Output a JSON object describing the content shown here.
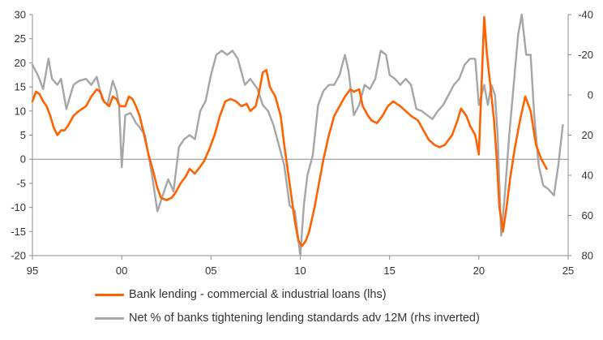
{
  "chart_data": {
    "type": "line",
    "x_axis": {
      "ticks": [
        "95",
        "00",
        "05",
        "10",
        "15",
        "20",
        "25"
      ],
      "tick_years": [
        1995,
        2000,
        2005,
        2010,
        2015,
        2020,
        2025
      ],
      "range": [
        1995,
        2025
      ]
    },
    "y_left": {
      "ticks": [
        30,
        25,
        20,
        15,
        10,
        5,
        0,
        -5,
        -10,
        -15,
        -20
      ],
      "range": [
        -20,
        30
      ]
    },
    "y_right": {
      "ticks": [
        -40,
        -20,
        0,
        20,
        40,
        60,
        80
      ],
      "range": [
        -40,
        80
      ],
      "inverted": true
    },
    "zero_line": true,
    "legend_position": "bottom",
    "series": [
      {
        "name": "Bank lending - commercial & industrial loans (lhs)",
        "axis": "left",
        "color": "#FF6200",
        "points": [
          [
            1995.0,
            12
          ],
          [
            1995.2,
            14
          ],
          [
            1995.4,
            13.5
          ],
          [
            1995.6,
            12
          ],
          [
            1995.8,
            11
          ],
          [
            1996.0,
            9
          ],
          [
            1996.2,
            6.5
          ],
          [
            1996.4,
            5
          ],
          [
            1996.6,
            6
          ],
          [
            1996.8,
            6
          ],
          [
            1997.0,
            7
          ],
          [
            1997.3,
            9
          ],
          [
            1997.6,
            10
          ],
          [
            1998.0,
            11
          ],
          [
            1998.3,
            13
          ],
          [
            1998.6,
            14.5
          ],
          [
            1998.8,
            14
          ],
          [
            1999.0,
            12
          ],
          [
            1999.3,
            11
          ],
          [
            1999.5,
            13
          ],
          [
            1999.7,
            12.5
          ],
          [
            1999.9,
            11
          ],
          [
            2000.2,
            11
          ],
          [
            2000.4,
            13
          ],
          [
            2000.6,
            12.5
          ],
          [
            2000.8,
            11
          ],
          [
            2001.0,
            9
          ],
          [
            2001.2,
            6
          ],
          [
            2001.5,
            1
          ],
          [
            2001.8,
            -3
          ],
          [
            2002.0,
            -6
          ],
          [
            2002.2,
            -8
          ],
          [
            2002.5,
            -8.5
          ],
          [
            2002.8,
            -8
          ],
          [
            2003.0,
            -7
          ],
          [
            2003.3,
            -5
          ],
          [
            2003.6,
            -3.5
          ],
          [
            2003.8,
            -2
          ],
          [
            2004.1,
            -3
          ],
          [
            2004.3,
            -2
          ],
          [
            2004.6,
            -0.5
          ],
          [
            2004.9,
            2
          ],
          [
            2005.2,
            5
          ],
          [
            2005.5,
            9
          ],
          [
            2005.8,
            12
          ],
          [
            2006.1,
            12.5
          ],
          [
            2006.4,
            12
          ],
          [
            2006.7,
            11
          ],
          [
            2007.0,
            11.5
          ],
          [
            2007.2,
            10
          ],
          [
            2007.5,
            11
          ],
          [
            2007.7,
            14
          ],
          [
            2007.9,
            18
          ],
          [
            2008.1,
            18.5
          ],
          [
            2008.3,
            15
          ],
          [
            2008.6,
            13
          ],
          [
            2008.9,
            9
          ],
          [
            2009.1,
            3
          ],
          [
            2009.4,
            -5
          ],
          [
            2009.7,
            -13
          ],
          [
            2009.9,
            -17
          ],
          [
            2010.1,
            -18
          ],
          [
            2010.3,
            -17
          ],
          [
            2010.5,
            -15
          ],
          [
            2010.8,
            -10
          ],
          [
            2011.0,
            -6
          ],
          [
            2011.3,
            0
          ],
          [
            2011.6,
            5
          ],
          [
            2011.9,
            9
          ],
          [
            2012.2,
            11
          ],
          [
            2012.5,
            13
          ],
          [
            2012.8,
            14.5
          ],
          [
            2013.0,
            14
          ],
          [
            2013.3,
            14.5
          ],
          [
            2013.5,
            11
          ],
          [
            2013.8,
            9
          ],
          [
            2014.0,
            8
          ],
          [
            2014.3,
            7.5
          ],
          [
            2014.6,
            9
          ],
          [
            2014.9,
            11
          ],
          [
            2015.2,
            12
          ],
          [
            2015.6,
            11
          ],
          [
            2015.9,
            10
          ],
          [
            2016.2,
            9
          ],
          [
            2016.6,
            8
          ],
          [
            2016.9,
            6
          ],
          [
            2017.2,
            4
          ],
          [
            2017.5,
            3
          ],
          [
            2017.8,
            2.5
          ],
          [
            2018.1,
            3
          ],
          [
            2018.5,
            5
          ],
          [
            2018.8,
            8
          ],
          [
            2019.0,
            10.5
          ],
          [
            2019.3,
            9
          ],
          [
            2019.5,
            7
          ],
          [
            2019.8,
            5
          ],
          [
            2020.0,
            1
          ],
          [
            2020.15,
            15
          ],
          [
            2020.3,
            29.5
          ],
          [
            2020.45,
            22
          ],
          [
            2020.65,
            15
          ],
          [
            2020.85,
            8
          ],
          [
            2021.0,
            0
          ],
          [
            2021.15,
            -10
          ],
          [
            2021.35,
            -15
          ],
          [
            2021.55,
            -10
          ],
          [
            2021.75,
            -4
          ],
          [
            2022.0,
            2
          ],
          [
            2022.3,
            8
          ],
          [
            2022.6,
            13
          ],
          [
            2022.9,
            10
          ],
          [
            2023.2,
            3
          ],
          [
            2023.5,
            0
          ],
          [
            2023.8,
            -2
          ]
        ]
      },
      {
        "name": "Net % of banks tightening lending standards adv 12M (rhs inverted)",
        "axis": "right",
        "color": "#A6A6A6",
        "points": [
          [
            1995.0,
            -15
          ],
          [
            1995.3,
            -10
          ],
          [
            1995.6,
            -3
          ],
          [
            1995.9,
            -18
          ],
          [
            1996.1,
            -8
          ],
          [
            1996.4,
            -5
          ],
          [
            1996.6,
            -8
          ],
          [
            1996.9,
            7
          ],
          [
            1997.3,
            -5
          ],
          [
            1997.6,
            -7
          ],
          [
            1998.0,
            -8
          ],
          [
            1998.3,
            -5
          ],
          [
            1998.6,
            -9
          ],
          [
            1998.9,
            2
          ],
          [
            1999.2,
            5
          ],
          [
            1999.5,
            -7
          ],
          [
            1999.7,
            -2
          ],
          [
            1999.85,
            5
          ],
          [
            2000.0,
            36
          ],
          [
            2000.2,
            10
          ],
          [
            2000.5,
            9
          ],
          [
            2000.8,
            14
          ],
          [
            2001.0,
            16
          ],
          [
            2001.3,
            20
          ],
          [
            2001.7,
            40
          ],
          [
            2002.0,
            58
          ],
          [
            2002.3,
            50
          ],
          [
            2002.6,
            42
          ],
          [
            2002.9,
            48
          ],
          [
            2003.2,
            26
          ],
          [
            2003.5,
            22
          ],
          [
            2003.8,
            20
          ],
          [
            2004.1,
            22
          ],
          [
            2004.4,
            8
          ],
          [
            2004.7,
            3
          ],
          [
            2005.0,
            -10
          ],
          [
            2005.3,
            -20
          ],
          [
            2005.6,
            -22
          ],
          [
            2005.9,
            -20
          ],
          [
            2006.2,
            -22
          ],
          [
            2006.5,
            -18
          ],
          [
            2006.9,
            -5
          ],
          [
            2007.2,
            -8
          ],
          [
            2007.6,
            -3
          ],
          [
            2007.9,
            5
          ],
          [
            2008.2,
            8
          ],
          [
            2008.5,
            15
          ],
          [
            2008.8,
            25
          ],
          [
            2009.1,
            35
          ],
          [
            2009.4,
            55
          ],
          [
            2009.7,
            58
          ],
          [
            2010.0,
            80
          ],
          [
            2010.2,
            55
          ],
          [
            2010.4,
            40
          ],
          [
            2010.7,
            30
          ],
          [
            2011.0,
            5
          ],
          [
            2011.3,
            -2
          ],
          [
            2011.6,
            -5
          ],
          [
            2011.9,
            -5
          ],
          [
            2012.2,
            -10
          ],
          [
            2012.5,
            -20
          ],
          [
            2012.7,
            -12
          ],
          [
            2013.0,
            10
          ],
          [
            2013.3,
            5
          ],
          [
            2013.6,
            -5
          ],
          [
            2013.9,
            -3
          ],
          [
            2014.2,
            -8
          ],
          [
            2014.5,
            -22
          ],
          [
            2014.8,
            -20
          ],
          [
            2015.0,
            -10
          ],
          [
            2015.3,
            -8
          ],
          [
            2015.6,
            -5
          ],
          [
            2015.9,
            -8
          ],
          [
            2016.2,
            -5
          ],
          [
            2016.5,
            7
          ],
          [
            2016.8,
            8
          ],
          [
            2017.1,
            10
          ],
          [
            2017.4,
            12
          ],
          [
            2017.7,
            8
          ],
          [
            2018.0,
            5
          ],
          [
            2018.3,
            0
          ],
          [
            2018.6,
            -5
          ],
          [
            2018.9,
            -8
          ],
          [
            2019.2,
            -15
          ],
          [
            2019.5,
            -18
          ],
          [
            2019.8,
            -18
          ],
          [
            2020.0,
            5
          ],
          [
            2020.3,
            -5
          ],
          [
            2020.5,
            5
          ],
          [
            2020.7,
            -5
          ],
          [
            2020.9,
            0
          ],
          [
            2021.05,
            20
          ],
          [
            2021.25,
            70
          ],
          [
            2021.45,
            50
          ],
          [
            2021.7,
            20
          ],
          [
            2021.95,
            -5
          ],
          [
            2022.2,
            -30
          ],
          [
            2022.4,
            -40
          ],
          [
            2022.65,
            -20
          ],
          [
            2022.9,
            -20
          ],
          [
            2023.1,
            10
          ],
          [
            2023.35,
            35
          ],
          [
            2023.6,
            45
          ],
          [
            2023.9,
            47
          ],
          [
            2024.2,
            50
          ],
          [
            2024.45,
            35
          ],
          [
            2024.7,
            15
          ]
        ]
      }
    ]
  }
}
